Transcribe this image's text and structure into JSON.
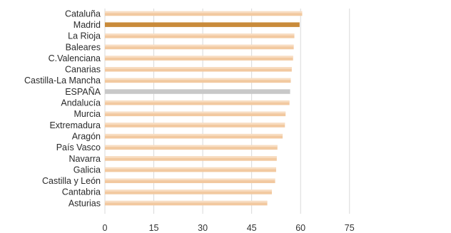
{
  "chart_data": {
    "type": "bar",
    "orientation": "horizontal",
    "title": "",
    "xlabel": "",
    "ylabel": "",
    "categories": [
      "Cataluña",
      "Madrid",
      "La Rioja",
      "Baleares",
      "C.Valenciana",
      "Canarias",
      "Castilla-La Mancha",
      "ESPAÑA",
      "Andalucía",
      "Murcia",
      "Extremadura",
      "Aragón",
      "País Vasco",
      "Navarra",
      "Galicia",
      "Castilla y León",
      "Cantabria",
      "Asturias"
    ],
    "values": [
      60.5,
      59.7,
      58.1,
      57.9,
      57.7,
      57.3,
      57.0,
      56.8,
      56.6,
      55.4,
      55.2,
      54.5,
      52.9,
      52.7,
      52.5,
      52.2,
      51.2,
      49.8
    ],
    "xlim": [
      0,
      80
    ],
    "xticks": [
      0,
      15,
      30,
      45,
      60,
      75
    ],
    "grid": true,
    "legend": "none",
    "colors": {
      "default_bar": "#f2c9a0",
      "default_bar_highlight": "#fbe6d0",
      "madrid_bar": "#c98b3a",
      "espana_bar": "#c8c8c8",
      "grid": "#d9d9d9"
    },
    "highlight": {
      "Madrid": "madrid_bar",
      "ESPAÑA": "espana_bar"
    }
  }
}
